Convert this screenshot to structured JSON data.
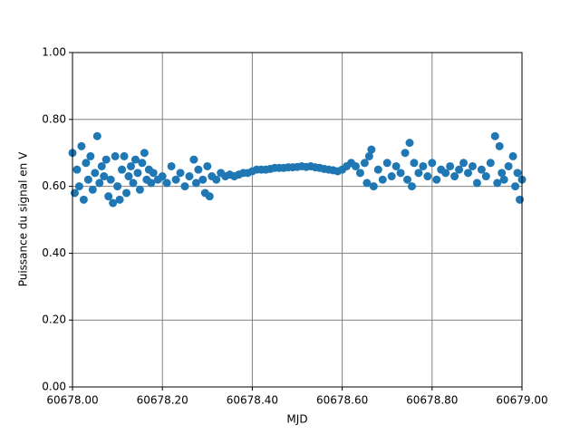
{
  "chart_data": {
    "type": "scatter",
    "x_label": "MJD",
    "y_label": "Puissance du signal en V",
    "color": "#1f77b4",
    "grid": true,
    "xlim": [
      60678.0,
      60679.0
    ],
    "xticks": [
      {
        "value": 60678.0,
        "label": "60678.00"
      },
      {
        "value": 60678.2,
        "label": "60678.20"
      },
      {
        "value": 60678.4,
        "label": "60678.40"
      },
      {
        "value": 60678.6,
        "label": "60678.60"
      },
      {
        "value": 60678.8,
        "label": "60678.80"
      },
      {
        "value": 60679.0,
        "label": "60679.00"
      }
    ],
    "ylim": [
      0,
      1
    ],
    "yticks": [
      {
        "value": 0,
        "label": "0.00"
      },
      {
        "value": 0.2,
        "label": "0.20"
      },
      {
        "value": 0.4,
        "label": "0.40"
      },
      {
        "value": 0.6,
        "label": "0.60"
      },
      {
        "value": 0.8,
        "label": "0.80"
      },
      {
        "value": 1,
        "label": "1.00"
      }
    ],
    "x": [
      60678.0,
      60678.005,
      60678.01,
      60678.015,
      60678.02,
      60678.025,
      60678.03,
      60678.035,
      60678.04,
      60678.045,
      60678.05,
      60678.055,
      60678.06,
      60678.065,
      60678.07,
      60678.075,
      60678.08,
      60678.085,
      60678.09,
      60678.095,
      60678.1,
      60678.105,
      60678.11,
      60678.115,
      60678.12,
      60678.125,
      60678.13,
      60678.135,
      60678.14,
      60678.145,
      60678.15,
      60678.155,
      60678.16,
      60678.165,
      60678.17,
      60678.175,
      60678.18,
      60678.19,
      60678.2,
      60678.21,
      60678.22,
      60678.23,
      60678.24,
      60678.25,
      60678.26,
      60678.27,
      60678.275,
      60678.28,
      60678.29,
      60678.295,
      60678.3,
      60678.305,
      60678.31,
      60678.32,
      60678.33,
      60678.34,
      60678.35,
      60678.36,
      60678.37,
      60678.38,
      60678.39,
      60678.4,
      60678.41,
      60678.42,
      60678.43,
      60678.44,
      60678.45,
      60678.46,
      60678.47,
      60678.48,
      60678.49,
      60678.5,
      60678.51,
      60678.52,
      60678.53,
      60678.54,
      60678.55,
      60678.56,
      60678.57,
      60678.58,
      60678.59,
      60678.6,
      60678.61,
      60678.62,
      60678.63,
      60678.64,
      60678.65,
      60678.655,
      60678.66,
      60678.665,
      60678.67,
      60678.68,
      60678.69,
      60678.7,
      60678.71,
      60678.72,
      60678.73,
      60678.74,
      60678.745,
      60678.75,
      60678.755,
      60678.76,
      60678.77,
      60678.78,
      60678.79,
      60678.8,
      60678.81,
      60678.82,
      60678.83,
      60678.84,
      60678.85,
      60678.86,
      60678.87,
      60678.88,
      60678.89,
      60678.9,
      60678.91,
      60678.92,
      60678.93,
      60678.94,
      60678.945,
      60678.95,
      60678.955,
      60678.96,
      60678.97,
      60678.98,
      60678.985,
      60678.99,
      60678.995,
      60679.0
    ],
    "values": [
      0.7,
      0.58,
      0.65,
      0.6,
      0.72,
      0.56,
      0.67,
      0.62,
      0.69,
      0.59,
      0.64,
      0.75,
      0.61,
      0.66,
      0.63,
      0.68,
      0.57,
      0.62,
      0.55,
      0.69,
      0.6,
      0.56,
      0.65,
      0.69,
      0.58,
      0.63,
      0.66,
      0.61,
      0.68,
      0.64,
      0.59,
      0.67,
      0.7,
      0.62,
      0.65,
      0.61,
      0.64,
      0.62,
      0.63,
      0.61,
      0.66,
      0.62,
      0.64,
      0.6,
      0.63,
      0.68,
      0.61,
      0.65,
      0.62,
      0.58,
      0.66,
      0.57,
      0.63,
      0.62,
      0.64,
      0.63,
      0.635,
      0.63,
      0.635,
      0.64,
      0.64,
      0.645,
      0.65,
      0.65,
      0.65,
      0.652,
      0.655,
      0.655,
      0.655,
      0.657,
      0.657,
      0.658,
      0.66,
      0.658,
      0.66,
      0.657,
      0.655,
      0.652,
      0.65,
      0.648,
      0.645,
      0.65,
      0.66,
      0.67,
      0.66,
      0.64,
      0.67,
      0.61,
      0.69,
      0.71,
      0.6,
      0.65,
      0.62,
      0.67,
      0.63,
      0.66,
      0.64,
      0.7,
      0.62,
      0.73,
      0.6,
      0.67,
      0.64,
      0.66,
      0.63,
      0.67,
      0.62,
      0.65,
      0.64,
      0.66,
      0.63,
      0.65,
      0.67,
      0.64,
      0.66,
      0.61,
      0.65,
      0.63,
      0.67,
      0.75,
      0.61,
      0.72,
      0.64,
      0.62,
      0.66,
      0.69,
      0.6,
      0.64,
      0.56,
      0.62
    ]
  }
}
